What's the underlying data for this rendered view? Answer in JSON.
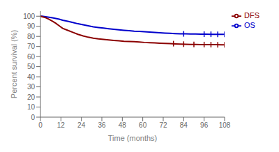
{
  "chart_data": {
    "type": "line",
    "xlabel": "Time (months)",
    "ylabel": "Percent survival (%)",
    "x": [
      0,
      1,
      3,
      5,
      7,
      9,
      11,
      13,
      16,
      19,
      22,
      25,
      28,
      31,
      34,
      37,
      40,
      43,
      46,
      49,
      52,
      55,
      58,
      61,
      64,
      67,
      70,
      73,
      76,
      79,
      82,
      85,
      88,
      91,
      94,
      97,
      100,
      103,
      106,
      108
    ],
    "series": [
      {
        "name": "OS",
        "color": "#0000CC",
        "values": [
          100,
          100,
          99.5,
          99.0,
          98.5,
          97.8,
          97.0,
          96.0,
          95.0,
          93.8,
          92.5,
          91.5,
          90.5,
          89.5,
          88.8,
          88.2,
          87.6,
          87.0,
          86.5,
          86.0,
          85.6,
          85.2,
          85.0,
          84.6,
          84.3,
          84.0,
          83.6,
          83.3,
          83.0,
          82.8,
          82.6,
          82.5,
          82.4,
          82.3,
          82.2,
          82.2,
          82.1,
          82.1,
          82.0,
          82.0
        ],
        "censor_x": [
          84,
          96,
          100,
          104,
          108
        ],
        "censor_y": [
          82.5,
          82.2,
          82.1,
          82.05,
          82.0
        ]
      },
      {
        "name": "DFS",
        "color": "#8B0000",
        "values": [
          100,
          99.5,
          98.5,
          97.0,
          95.0,
          93.0,
          90.5,
          88.0,
          86.0,
          84.0,
          82.0,
          80.5,
          79.2,
          78.2,
          77.5,
          77.0,
          76.5,
          76.0,
          75.6,
          75.2,
          75.0,
          74.7,
          74.4,
          74.0,
          73.8,
          73.5,
          73.2,
          73.0,
          72.8,
          72.5,
          72.3,
          72.2,
          72.1,
          72.0,
          71.9,
          71.9,
          71.8,
          71.8,
          71.7,
          71.7
        ],
        "censor_x": [
          78,
          84,
          90,
          96,
          100,
          104,
          108
        ],
        "censor_y": [
          72.8,
          72.3,
          72.1,
          71.9,
          71.8,
          71.75,
          71.7
        ]
      }
    ],
    "xlim": [
      0,
      108
    ],
    "ylim": [
      0,
      105
    ],
    "xticks": [
      0,
      12,
      24,
      36,
      48,
      60,
      72,
      84,
      96,
      108
    ],
    "yticks": [
      0,
      10,
      20,
      30,
      40,
      50,
      60,
      70,
      80,
      90,
      100
    ],
    "grid": false,
    "legend": "right"
  }
}
